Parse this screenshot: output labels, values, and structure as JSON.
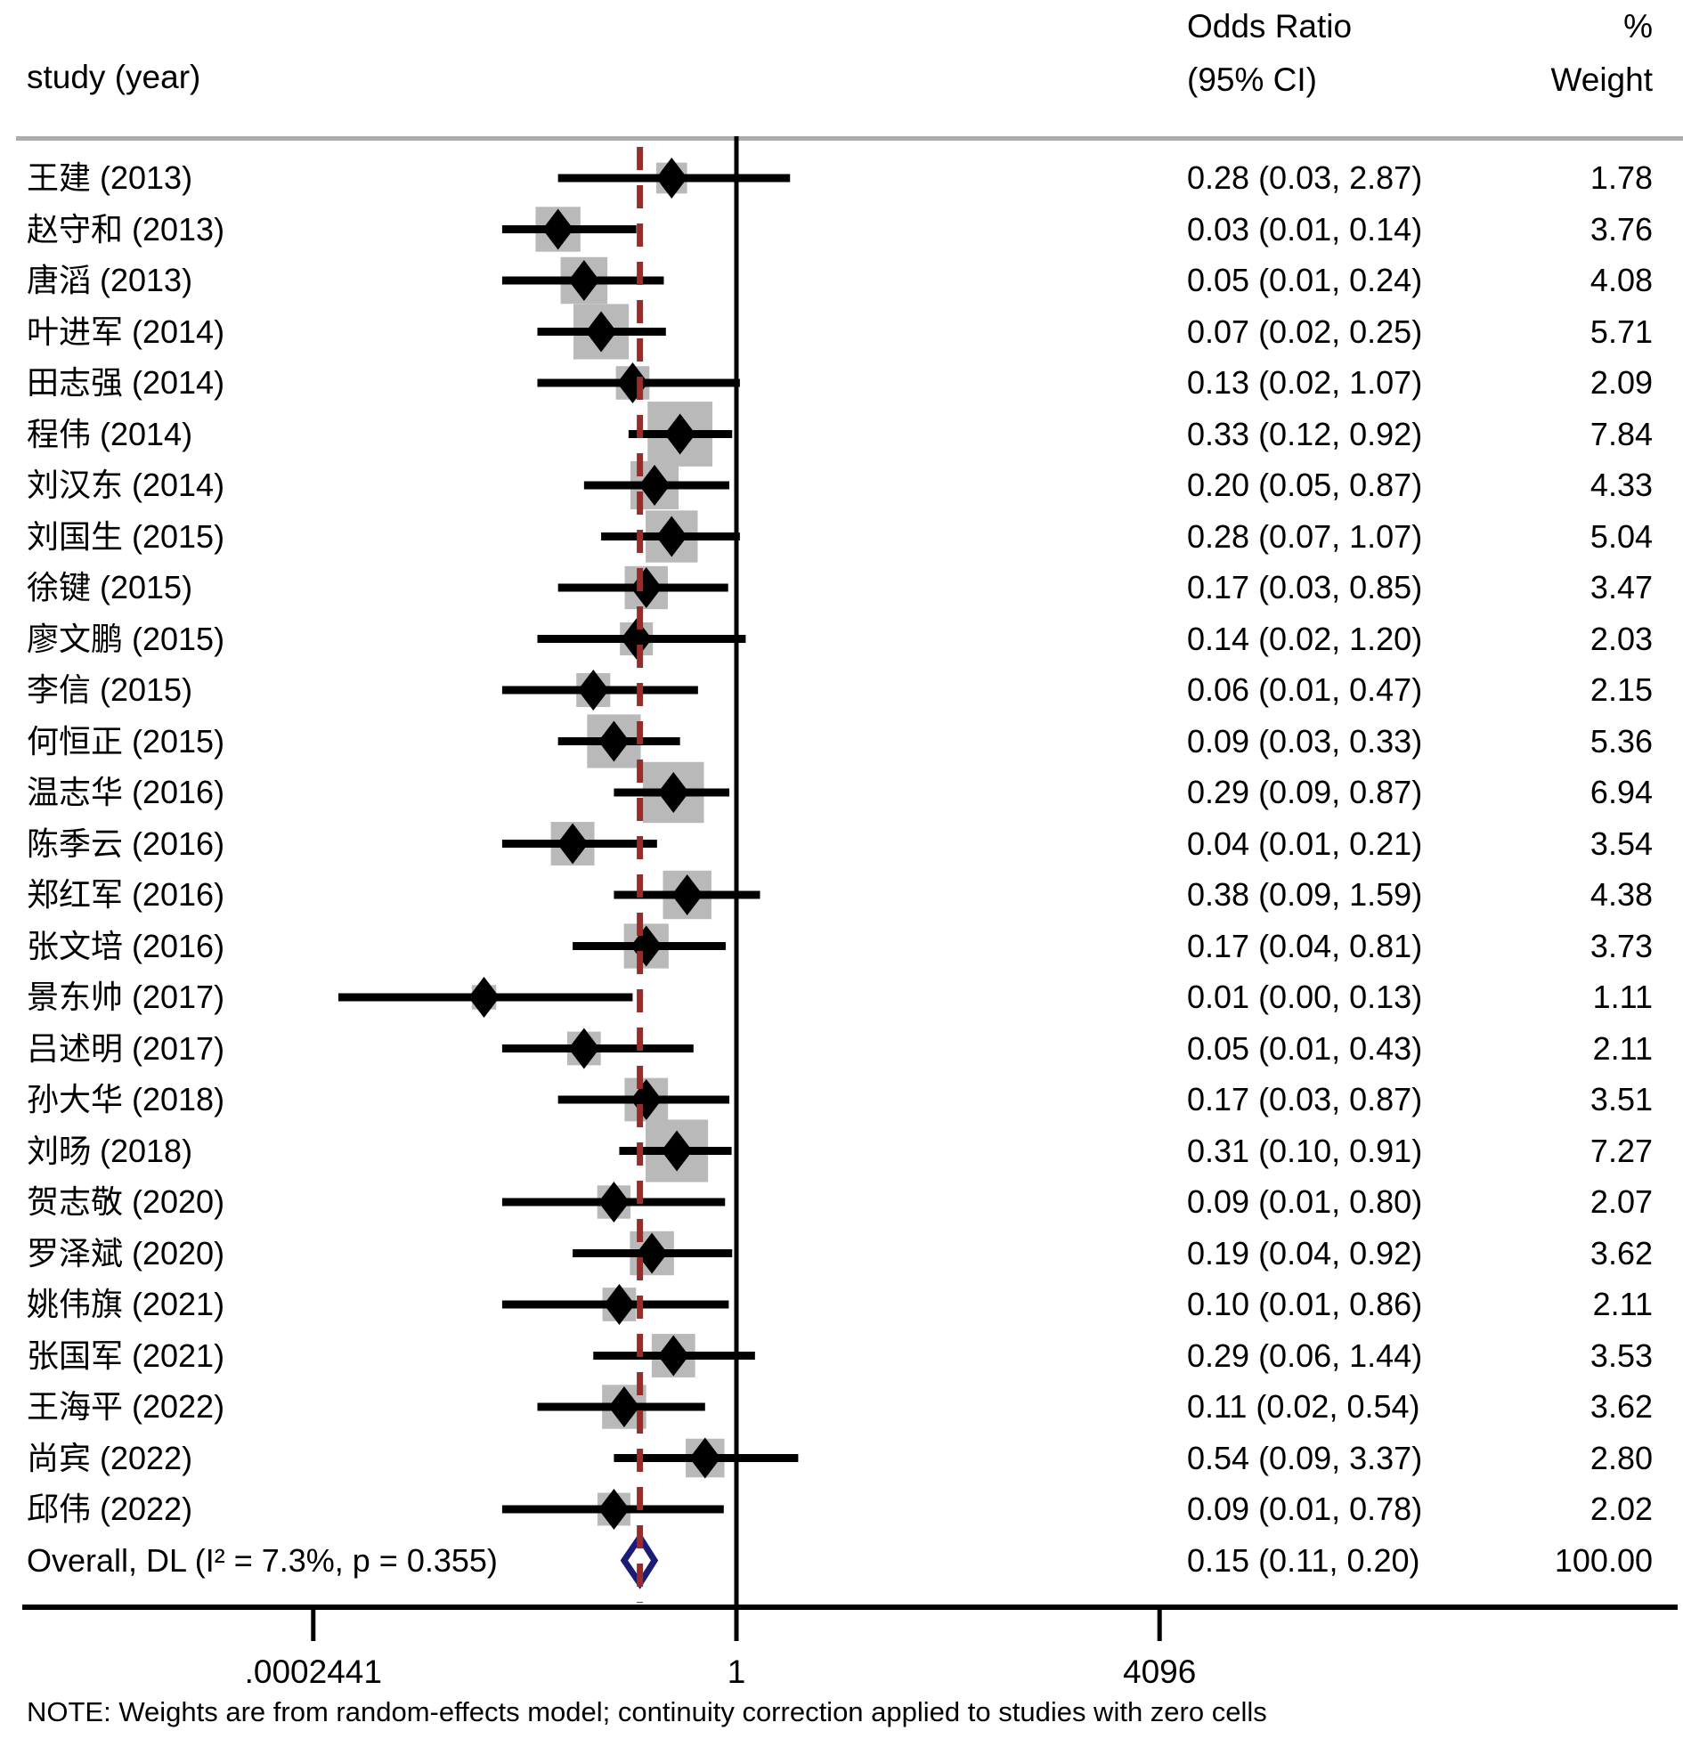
{
  "header": {
    "study_col": "study (year)",
    "or_line1": "Odds Ratio",
    "or_line2": "(95% CI)",
    "weight_line1": "%",
    "weight_line2": "Weight"
  },
  "note": "NOTE: Weights are from random-effects model; continuity correction applied to studies with zero cells",
  "colors": {
    "text": "#000000",
    "box": "#b9b9b9",
    "ci_line": "#000000",
    "study_diamond": "#000000",
    "reference_line": "#9b2b28",
    "overall_diamond_border": "#1c1c78",
    "overall_diamond_fill": "#ffffff",
    "divider": "#acacac",
    "axis": "#000000"
  },
  "chart_data": {
    "type": "forest",
    "x_scale": "log",
    "xlim": [
      0.0002441,
      4096
    ],
    "x_ticks": [
      {
        "label": ".0002441",
        "value": 0.0002441
      },
      {
        "label": "1",
        "value": 1
      },
      {
        "label": "4096",
        "value": 4096
      }
    ],
    "reference_line_at_overall": true,
    "studies": [
      {
        "label": "王建 (2013)",
        "or": 0.28,
        "ci_low": 0.03,
        "ci_high": 2.87,
        "or_ci_text": "0.28 (0.03, 2.87)",
        "weight": 1.78,
        "weight_text": "1.78"
      },
      {
        "label": "赵守和 (2013)",
        "or": 0.03,
        "ci_low": 0.01,
        "ci_high": 0.14,
        "or_ci_text": "0.03 (0.01, 0.14)",
        "weight": 3.76,
        "weight_text": "3.76"
      },
      {
        "label": "唐滔 (2013)",
        "or": 0.05,
        "ci_low": 0.01,
        "ci_high": 0.24,
        "or_ci_text": "0.05 (0.01, 0.24)",
        "weight": 4.08,
        "weight_text": "4.08"
      },
      {
        "label": "叶进军 (2014)",
        "or": 0.07,
        "ci_low": 0.02,
        "ci_high": 0.25,
        "or_ci_text": "0.07 (0.02, 0.25)",
        "weight": 5.71,
        "weight_text": "5.71"
      },
      {
        "label": "田志强 (2014)",
        "or": 0.13,
        "ci_low": 0.02,
        "ci_high": 1.07,
        "or_ci_text": "0.13 (0.02, 1.07)",
        "weight": 2.09,
        "weight_text": "2.09"
      },
      {
        "label": "程伟 (2014)",
        "or": 0.33,
        "ci_low": 0.12,
        "ci_high": 0.92,
        "or_ci_text": "0.33 (0.12, 0.92)",
        "weight": 7.84,
        "weight_text": "7.84"
      },
      {
        "label": "刘汉东 (2014)",
        "or": 0.2,
        "ci_low": 0.05,
        "ci_high": 0.87,
        "or_ci_text": "0.20 (0.05, 0.87)",
        "weight": 4.33,
        "weight_text": "4.33"
      },
      {
        "label": "刘国生 (2015)",
        "or": 0.28,
        "ci_low": 0.07,
        "ci_high": 1.07,
        "or_ci_text": "0.28 (0.07, 1.07)",
        "weight": 5.04,
        "weight_text": "5.04"
      },
      {
        "label": "徐键 (2015)",
        "or": 0.17,
        "ci_low": 0.03,
        "ci_high": 0.85,
        "or_ci_text": "0.17 (0.03, 0.85)",
        "weight": 3.47,
        "weight_text": "3.47"
      },
      {
        "label": "廖文鹏 (2015)",
        "or": 0.14,
        "ci_low": 0.02,
        "ci_high": 1.2,
        "or_ci_text": "0.14 (0.02, 1.20)",
        "weight": 2.03,
        "weight_text": "2.03"
      },
      {
        "label": "李信 (2015)",
        "or": 0.06,
        "ci_low": 0.01,
        "ci_high": 0.47,
        "or_ci_text": "0.06 (0.01, 0.47)",
        "weight": 2.15,
        "weight_text": "2.15"
      },
      {
        "label": "何恒正 (2015)",
        "or": 0.09,
        "ci_low": 0.03,
        "ci_high": 0.33,
        "or_ci_text": "0.09 (0.03, 0.33)",
        "weight": 5.36,
        "weight_text": "5.36"
      },
      {
        "label": "温志华 (2016)",
        "or": 0.29,
        "ci_low": 0.09,
        "ci_high": 0.87,
        "or_ci_text": "0.29 (0.09, 0.87)",
        "weight": 6.94,
        "weight_text": "6.94"
      },
      {
        "label": "陈季云 (2016)",
        "or": 0.04,
        "ci_low": 0.01,
        "ci_high": 0.21,
        "or_ci_text": "0.04 (0.01, 0.21)",
        "weight": 3.54,
        "weight_text": "3.54"
      },
      {
        "label": "郑红军 (2016)",
        "or": 0.38,
        "ci_low": 0.09,
        "ci_high": 1.59,
        "or_ci_text": "0.38 (0.09, 1.59)",
        "weight": 4.38,
        "weight_text": "4.38"
      },
      {
        "label": "张文培 (2016)",
        "or": 0.17,
        "ci_low": 0.04,
        "ci_high": 0.81,
        "or_ci_text": "0.17 (0.04, 0.81)",
        "weight": 3.73,
        "weight_text": "3.73"
      },
      {
        "label": "景东帅 (2017)",
        "or": 0.01,
        "or_plot": 0.007,
        "ci_low": 0.0,
        "ci_low_plot": 0.0004,
        "ci_high": 0.13,
        "or_ci_text": "0.01 (0.00, 0.13)",
        "weight": 1.11,
        "weight_text": "1.11"
      },
      {
        "label": "吕述明 (2017)",
        "or": 0.05,
        "ci_low": 0.01,
        "ci_high": 0.43,
        "or_ci_text": "0.05 (0.01, 0.43)",
        "weight": 2.11,
        "weight_text": "2.11"
      },
      {
        "label": "孙大华 (2018)",
        "or": 0.17,
        "ci_low": 0.03,
        "ci_high": 0.87,
        "or_ci_text": "0.17 (0.03, 0.87)",
        "weight": 3.51,
        "weight_text": "3.51"
      },
      {
        "label": "刘旸 (2018)",
        "or": 0.31,
        "ci_low": 0.1,
        "ci_high": 0.91,
        "or_ci_text": "0.31 (0.10, 0.91)",
        "weight": 7.27,
        "weight_text": "7.27"
      },
      {
        "label": "贺志敬 (2020)",
        "or": 0.09,
        "ci_low": 0.01,
        "ci_high": 0.8,
        "or_ci_text": "0.09 (0.01, 0.80)",
        "weight": 2.07,
        "weight_text": "2.07"
      },
      {
        "label": "罗泽斌 (2020)",
        "or": 0.19,
        "ci_low": 0.04,
        "ci_high": 0.92,
        "or_ci_text": "0.19 (0.04, 0.92)",
        "weight": 3.62,
        "weight_text": "3.62"
      },
      {
        "label": "姚伟旗 (2021)",
        "or": 0.1,
        "ci_low": 0.01,
        "ci_high": 0.86,
        "or_ci_text": "0.10 (0.01, 0.86)",
        "weight": 2.11,
        "weight_text": "2.11"
      },
      {
        "label": "张国军 (2021)",
        "or": 0.29,
        "ci_low": 0.06,
        "ci_high": 1.44,
        "or_ci_text": "0.29 (0.06, 1.44)",
        "weight": 3.53,
        "weight_text": "3.53"
      },
      {
        "label": "王海平 (2022)",
        "or": 0.11,
        "ci_low": 0.02,
        "ci_high": 0.54,
        "or_ci_text": "0.11 (0.02, 0.54)",
        "weight": 3.62,
        "weight_text": "3.62"
      },
      {
        "label": "尚宾 (2022)",
        "or": 0.54,
        "ci_low": 0.09,
        "ci_high": 3.37,
        "or_ci_text": "0.54 (0.09, 3.37)",
        "weight": 2.8,
        "weight_text": "2.80"
      },
      {
        "label": "邱伟 (2022)",
        "or": 0.09,
        "ci_low": 0.01,
        "ci_high": 0.78,
        "or_ci_text": "0.09 (0.01, 0.78)",
        "weight": 2.02,
        "weight_text": "2.02"
      }
    ],
    "overall": {
      "label": "Overall, DL (I² = 7.3%, p = 0.355)",
      "or": 0.15,
      "ci_low": 0.11,
      "ci_high": 0.2,
      "or_ci_text": "0.15 (0.11, 0.20)",
      "weight": 100.0,
      "weight_text": "100.00",
      "heterogeneity_i2": "7.3%",
      "heterogeneity_p": "0.355",
      "model": "DL"
    }
  }
}
